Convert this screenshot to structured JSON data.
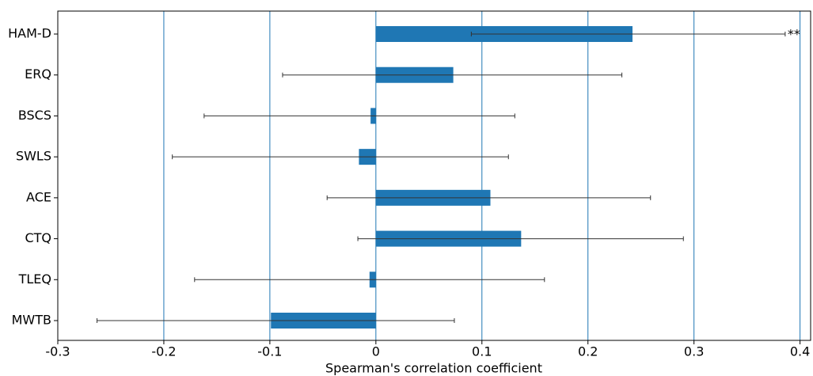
{
  "chart_data": {
    "type": "barh",
    "x_label": "Spearman's correlation coefficient",
    "categories": [
      "HAM-D",
      "ERQ",
      "BSCS",
      "SWLS",
      "ACE",
      "CTQ",
      "TLEQ",
      "MWTB"
    ],
    "values": [
      0.242,
      0.073,
      -0.005,
      -0.016,
      0.108,
      0.137,
      -0.006,
      -0.099
    ],
    "ci_low": [
      0.09,
      -0.088,
      -0.162,
      -0.192,
      -0.046,
      -0.017,
      -0.171,
      -0.263
    ],
    "ci_high": [
      0.386,
      0.232,
      0.131,
      0.125,
      0.259,
      0.29,
      0.159,
      0.074
    ],
    "significance": [
      "**",
      null,
      null,
      null,
      null,
      null,
      null,
      null
    ],
    "color": "#1f77b4",
    "error_color": "#333333",
    "grid_color": "#1f77b4",
    "xlim": [
      -0.3,
      0.41
    ],
    "xticks": [
      -0.3,
      -0.2,
      -0.1,
      0,
      0.1,
      0.2,
      0.3,
      0.4
    ],
    "grid": true
  }
}
